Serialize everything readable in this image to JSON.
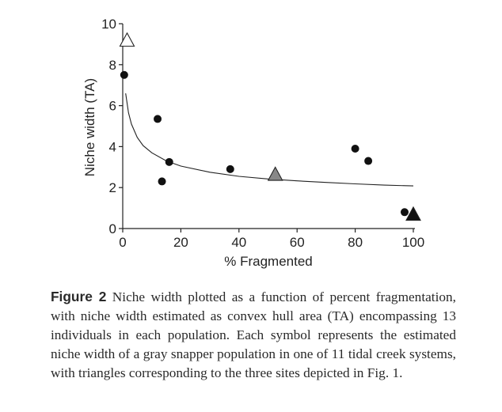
{
  "chart_data": {
    "type": "scatter",
    "xlabel": "% Fragmented",
    "ylabel": "Niche width (TA)",
    "xlim": [
      0,
      100
    ],
    "ylim": [
      0,
      10
    ],
    "x_ticks": [
      0,
      20,
      40,
      60,
      80,
      100
    ],
    "y_ticks": [
      0,
      2,
      4,
      6,
      8,
      10
    ],
    "grid": false,
    "points": [
      {
        "x": 0.5,
        "y": 7.5,
        "marker": "circle",
        "color": "#111111"
      },
      {
        "x": 12,
        "y": 5.35,
        "marker": "circle",
        "color": "#111111"
      },
      {
        "x": 13.5,
        "y": 2.3,
        "marker": "circle",
        "color": "#111111"
      },
      {
        "x": 16,
        "y": 3.25,
        "marker": "circle",
        "color": "#111111"
      },
      {
        "x": 37,
        "y": 2.9,
        "marker": "circle",
        "color": "#111111"
      },
      {
        "x": 80,
        "y": 3.9,
        "marker": "circle",
        "color": "#111111"
      },
      {
        "x": 84.5,
        "y": 3.3,
        "marker": "circle",
        "color": "#111111"
      },
      {
        "x": 97,
        "y": 0.8,
        "marker": "circle",
        "color": "#111111"
      },
      {
        "x": 1.5,
        "y": 9.2,
        "marker": "triangle",
        "color": "#ffffff"
      },
      {
        "x": 52.5,
        "y": 2.65,
        "marker": "triangle",
        "color": "#888888"
      },
      {
        "x": 100,
        "y": 0.7,
        "marker": "triangle",
        "color": "#111111"
      }
    ],
    "trend_line": {
      "type": "fitted-curve",
      "x": [
        1,
        2,
        3,
        5,
        7,
        10,
        15,
        20,
        30,
        40,
        50,
        60,
        70,
        80,
        90,
        100
      ],
      "y": [
        6.6,
        5.65,
        5.1,
        4.45,
        4.05,
        3.7,
        3.3,
        3.05,
        2.75,
        2.55,
        2.42,
        2.33,
        2.25,
        2.18,
        2.12,
        2.08
      ]
    }
  },
  "caption": {
    "label": "Figure 2",
    "text": "Niche width plotted as a function of percent fragmentation, with niche width estimated as convex hull area (TA) encompassing 13 individuals in each population. Each symbol represents the estimated niche width of a gray snapper population in one of 11 tidal creek systems, with triangles corresponding to the three sites depicted in Fig. 1."
  }
}
